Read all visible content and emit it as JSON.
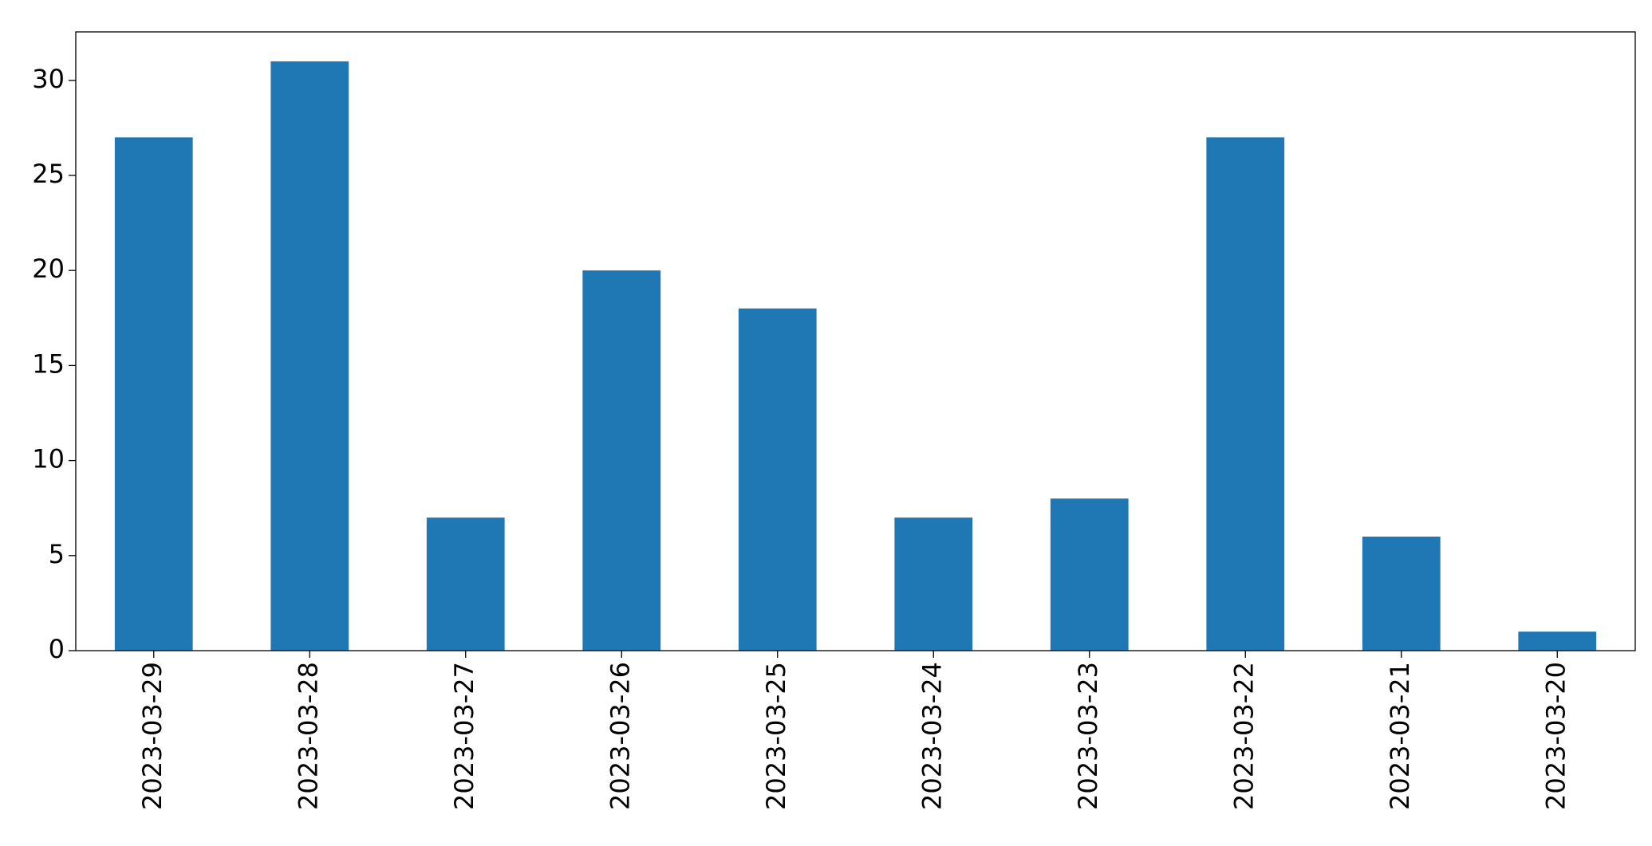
{
  "chart_data": {
    "type": "bar",
    "categories": [
      "2023-03-29",
      "2023-03-28",
      "2023-03-27",
      "2023-03-26",
      "2023-03-25",
      "2023-03-24",
      "2023-03-23",
      "2023-03-22",
      "2023-03-21",
      "2023-03-20"
    ],
    "values": [
      27,
      31,
      7,
      20,
      18,
      7,
      8,
      27,
      6,
      1
    ],
    "color": "#1f77b4",
    "ylim": [
      0,
      32.55
    ],
    "yticks": [
      0,
      5,
      10,
      15,
      20,
      25,
      30
    ],
    "grid": false
  }
}
